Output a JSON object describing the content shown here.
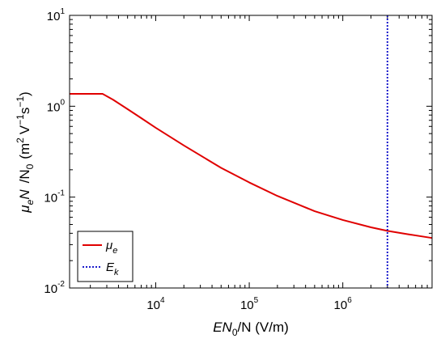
{
  "chart_data": {
    "type": "line",
    "x_scale": "log",
    "y_scale": "log",
    "xlim": [
      1200,
      9000000
    ],
    "ylim": [
      0.01,
      10
    ],
    "xlabel": {
      "prefix": "EN",
      "sub": "0",
      "suffix": "/N (V/m)"
    },
    "ylabel": {
      "mu": "μ",
      "mu_sub": "e",
      "n": "N",
      "n0": "/N",
      "n0_sub": "0",
      "unit_open": "(m",
      "unit_sq": "2",
      "unit_v": "V",
      "unit_vexp": "−1",
      "unit_s": "s",
      "unit_sexp": "−1",
      "unit_close": ")"
    },
    "x_ticks": [
      {
        "value": 10000,
        "base": "10",
        "exp": "4"
      },
      {
        "value": 100000,
        "base": "10",
        "exp": "5"
      },
      {
        "value": 1000000,
        "base": "10",
        "exp": "6"
      }
    ],
    "y_ticks": [
      {
        "value": 0.01,
        "base": "10",
        "exp": "-2"
      },
      {
        "value": 0.1,
        "base": "10",
        "exp": "-1"
      },
      {
        "value": 1,
        "base": "10",
        "exp": "0"
      },
      {
        "value": 10,
        "base": "10",
        "exp": "1"
      }
    ],
    "series": [
      {
        "name": "μ",
        "name_sub": "e",
        "color": "#e00000",
        "style": "solid",
        "points": [
          [
            1200,
            1.37
          ],
          [
            2700,
            1.37
          ],
          [
            3500,
            1.18
          ],
          [
            5000,
            0.93
          ],
          [
            7000,
            0.74
          ],
          [
            10000,
            0.58
          ],
          [
            20000,
            0.37
          ],
          [
            50000,
            0.21
          ],
          [
            100000,
            0.145
          ],
          [
            200000,
            0.103
          ],
          [
            500000,
            0.07
          ],
          [
            1000000,
            0.056
          ],
          [
            2000000,
            0.0465
          ],
          [
            3000000,
            0.0425
          ],
          [
            5000000,
            0.039
          ],
          [
            9000000,
            0.0355
          ]
        ]
      },
      {
        "name": "E",
        "name_sub": "k",
        "color": "#1a1acc",
        "style": "dotted",
        "x_value": 3000000
      }
    ],
    "legend_position": "bottom-left",
    "grid": false
  }
}
